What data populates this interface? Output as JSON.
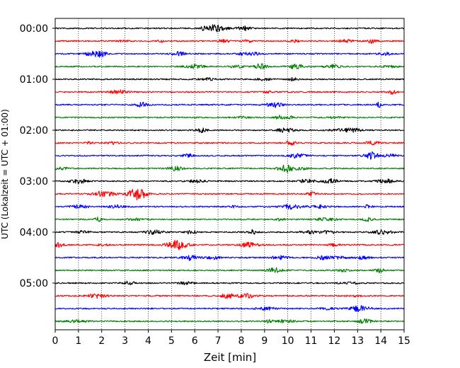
{
  "chart_data": {
    "type": "line",
    "title": "",
    "xlabel": "Zeit  [min]",
    "ylabel": "UTC (Lokalzeit = UTC + 01:00)",
    "xlim": [
      0,
      15
    ],
    "xticks": [
      0,
      1,
      2,
      3,
      4,
      5,
      6,
      7,
      8,
      9,
      10,
      11,
      12,
      13,
      14,
      15
    ],
    "y_tick_labels": [
      "00:00",
      "01:00",
      "02:00",
      "03:00",
      "04:00",
      "05:00"
    ],
    "grid": "vertical dotted at each minute",
    "trace_interval_minutes": 15,
    "trace_count": 24,
    "color_cycle": [
      "#000000",
      "#ff0000",
      "#0000ff",
      "#008000"
    ],
    "series": [
      {
        "start": "00:00",
        "color": "#000000"
      },
      {
        "start": "00:15",
        "color": "#ff0000"
      },
      {
        "start": "00:30",
        "color": "#0000ff"
      },
      {
        "start": "00:45",
        "color": "#008000"
      },
      {
        "start": "01:00",
        "color": "#000000"
      },
      {
        "start": "01:15",
        "color": "#ff0000"
      },
      {
        "start": "01:30",
        "color": "#0000ff"
      },
      {
        "start": "01:45",
        "color": "#008000"
      },
      {
        "start": "02:00",
        "color": "#000000"
      },
      {
        "start": "02:15",
        "color": "#ff0000"
      },
      {
        "start": "02:30",
        "color": "#0000ff"
      },
      {
        "start": "02:45",
        "color": "#008000"
      },
      {
        "start": "03:00",
        "color": "#000000"
      },
      {
        "start": "03:15",
        "color": "#ff0000"
      },
      {
        "start": "03:30",
        "color": "#0000ff"
      },
      {
        "start": "03:45",
        "color": "#008000"
      },
      {
        "start": "04:00",
        "color": "#000000"
      },
      {
        "start": "04:15",
        "color": "#ff0000"
      },
      {
        "start": "04:30",
        "color": "#0000ff"
      },
      {
        "start": "04:45",
        "color": "#008000"
      },
      {
        "start": "05:00",
        "color": "#000000"
      },
      {
        "start": "05:15",
        "color": "#ff0000"
      },
      {
        "start": "05:30",
        "color": "#0000ff"
      },
      {
        "start": "05:45",
        "color": "#008000"
      }
    ]
  }
}
